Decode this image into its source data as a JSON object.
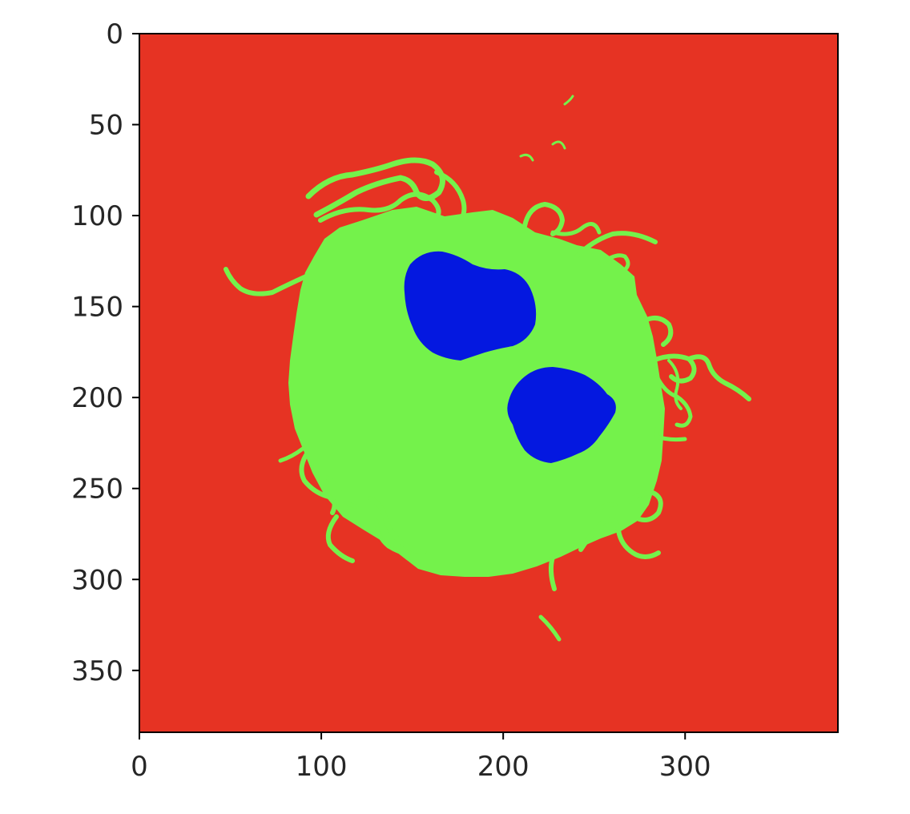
{
  "chart_data": {
    "type": "heatmap",
    "title": "",
    "xlabel": "",
    "ylabel": "",
    "xlim": [
      0,
      384
    ],
    "ylim": [
      384,
      0
    ],
    "x_ticks": [
      0,
      100,
      200,
      300
    ],
    "y_ticks": [
      0,
      50,
      100,
      150,
      200,
      250,
      300,
      350
    ],
    "x_tick_labels": [
      "0",
      "100",
      "200",
      "300"
    ],
    "y_tick_labels": [
      "0",
      "50",
      "100",
      "150",
      "200",
      "250",
      "300",
      "350"
    ],
    "grid": false,
    "legend": "none",
    "colors": {
      "background": "#e63323",
      "cell": "#74f24b",
      "nucleus": "#0418e0"
    }
  }
}
